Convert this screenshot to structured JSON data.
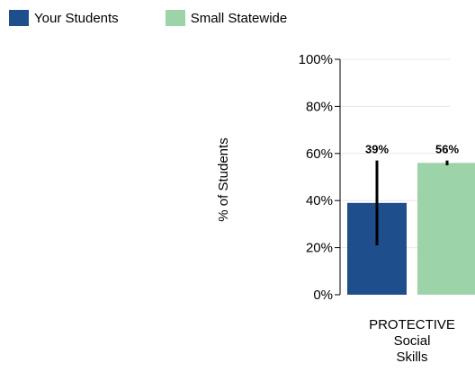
{
  "chart_data": {
    "type": "bar",
    "categories": [
      "PROTECTIVE Social Skills"
    ],
    "category_label_lines": [
      "PROTECTIVE",
      "Social",
      "Skills"
    ],
    "series": [
      {
        "name": "Your Students",
        "color": "#1f4e8c",
        "values": [
          39
        ],
        "error_low": [
          21
        ],
        "error_high": [
          57
        ],
        "value_labels": [
          "39%"
        ]
      },
      {
        "name": "Small Statewide",
        "color": "#9dd3a8",
        "values": [
          56
        ],
        "error_low": [
          55
        ],
        "error_high": [
          57
        ],
        "value_labels": [
          "56%"
        ]
      }
    ],
    "ylabel": "% of Students",
    "ylim": [
      0,
      100
    ],
    "yticks": [
      0,
      20,
      40,
      60,
      80,
      100
    ],
    "ytick_labels": [
      "0%",
      "20%",
      "40%",
      "60%",
      "80%",
      "100%"
    ],
    "grid": true,
    "legend_position": "top-left"
  }
}
